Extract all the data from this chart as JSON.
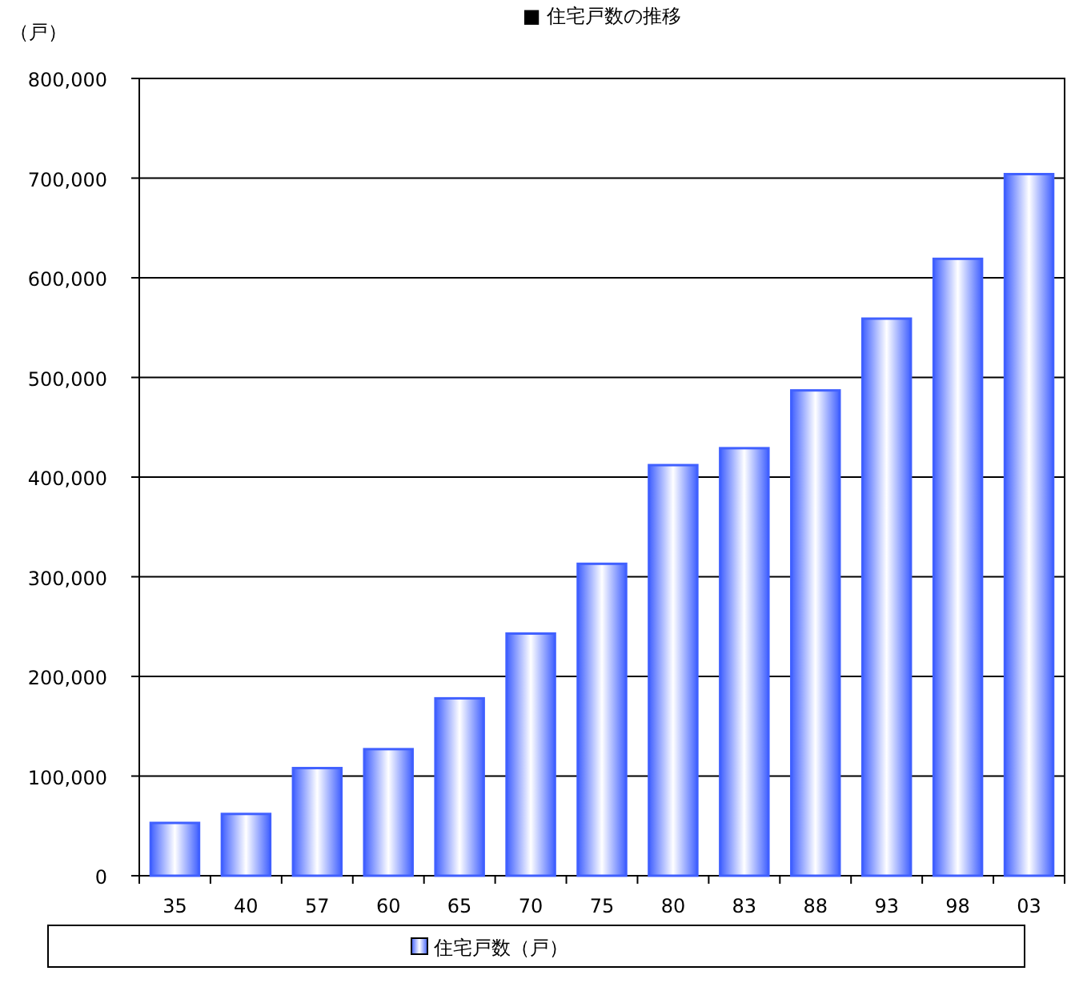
{
  "chart_data": {
    "type": "bar",
    "title": "■ 住宅戸数の推移",
    "ylabel": "（戸）",
    "categories": [
      "35",
      "40",
      "57",
      "60",
      "65",
      "70",
      "75",
      "80",
      "83",
      "88",
      "93",
      "98",
      "03"
    ],
    "series": [
      {
        "name": "住宅戸数（戸）",
        "color": "#4060ff",
        "values": [
          53000,
          62000,
          108000,
          127000,
          178000,
          243000,
          313000,
          412000,
          429000,
          487000,
          559000,
          619000,
          704000
        ]
      }
    ],
    "ylim": [
      0,
      800000
    ],
    "yticks": [
      {
        "value": 0,
        "label": "0"
      },
      {
        "value": 100000,
        "label": "100,000"
      },
      {
        "value": 200000,
        "label": "200,000"
      },
      {
        "value": 300000,
        "label": "300,000"
      },
      {
        "value": 400000,
        "label": "400,000"
      },
      {
        "value": 500000,
        "label": "500,000"
      },
      {
        "value": 600000,
        "label": "600,000"
      },
      {
        "value": 700000,
        "label": "700,000"
      },
      {
        "value": 800000,
        "label": "800,000"
      }
    ],
    "grid": "y",
    "legend": "bottom"
  }
}
